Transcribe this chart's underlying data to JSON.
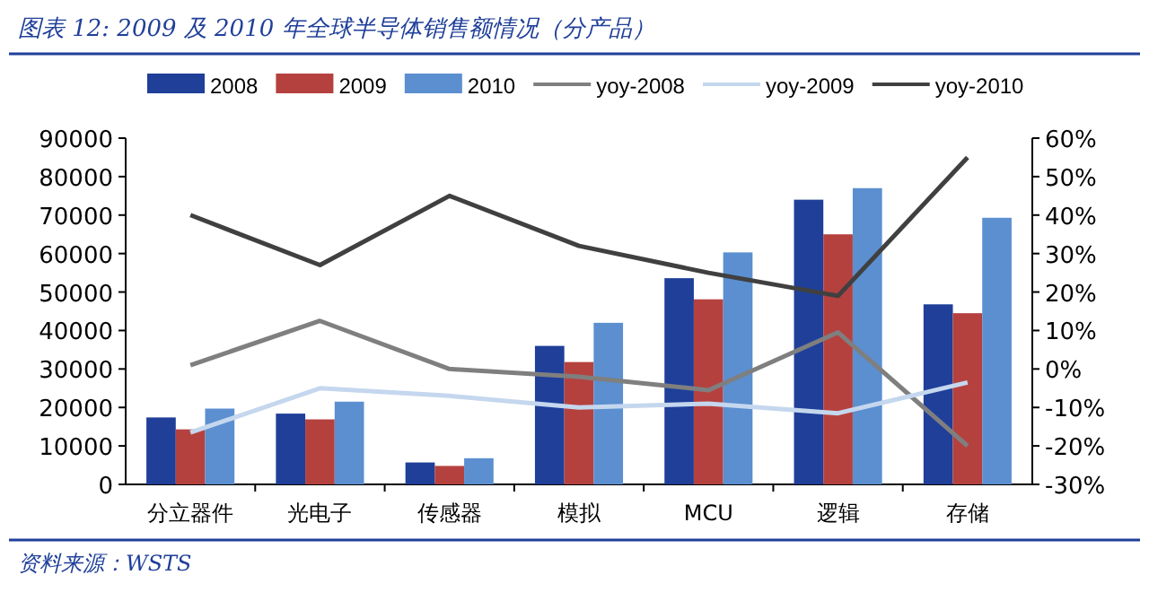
{
  "chart_data": {
    "type": "bar",
    "title": "图表 12:  2009 及 2010 年全球半导体销售额情况（分产品）",
    "annotations": [
      "资料来源：WSTS"
    ],
    "categories": [
      "分立器件",
      "光电子",
      "传感器",
      "模拟",
      "MCU",
      "逻辑",
      "存储"
    ],
    "series": [
      {
        "name": "2008",
        "color": "#1f3f99",
        "values": [
          17400,
          18400,
          5700,
          36000,
          53600,
          74000,
          46800
        ]
      },
      {
        "name": "2009",
        "color": "#b5413f",
        "values": [
          14300,
          16900,
          4800,
          31800,
          48100,
          65000,
          44500
        ]
      },
      {
        "name": "2010",
        "color": "#5b8fd0",
        "values": [
          19700,
          21500,
          6800,
          42000,
          60300,
          77000,
          69300
        ]
      },
      {
        "name": "yoy-2008",
        "type": "line",
        "axis": "y2",
        "color": "#7f7f7f",
        "values": [
          1,
          12.5,
          0,
          -2,
          -5.5,
          9.5,
          -20
        ]
      },
      {
        "name": "yoy-2009",
        "type": "line",
        "axis": "y2",
        "color": "#c5d7ee",
        "values": [
          -16.5,
          -5,
          -7,
          -10,
          -9,
          -11.5,
          -3.5
        ]
      },
      {
        "name": "yoy-2010",
        "type": "line",
        "axis": "y2",
        "color": "#404040",
        "values": [
          40,
          27,
          45,
          32,
          25,
          19,
          55
        ]
      }
    ],
    "ylim": [
      0,
      90000
    ],
    "yticks": [
      0,
      10000,
      20000,
      30000,
      40000,
      50000,
      60000,
      70000,
      80000,
      90000
    ],
    "y2lim": [
      -30,
      60
    ],
    "y2ticks": [
      {
        "value": -30,
        "label": "-30%"
      },
      {
        "value": -20,
        "label": "-20%"
      },
      {
        "value": -10,
        "label": "-10%"
      },
      {
        "value": 0,
        "label": "0%"
      },
      {
        "value": 10,
        "label": "10%"
      },
      {
        "value": 20,
        "label": "20%"
      },
      {
        "value": 30,
        "label": "30%"
      },
      {
        "value": 40,
        "label": "40%"
      },
      {
        "value": 50,
        "label": "50%"
      },
      {
        "value": 60,
        "label": "60%"
      }
    ],
    "grid": false,
    "legend": "top"
  }
}
